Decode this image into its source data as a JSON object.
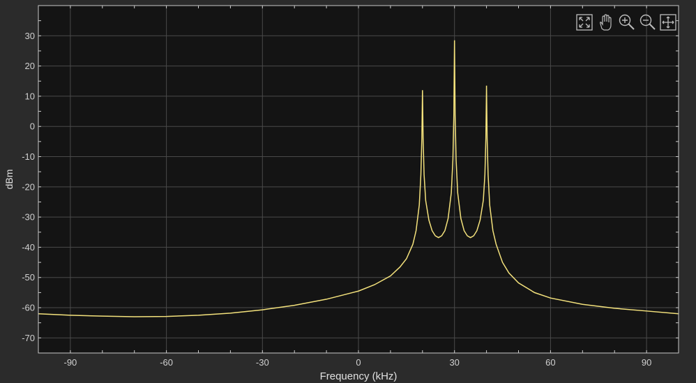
{
  "chart_data": {
    "type": "line",
    "xlabel": "Frequency (kHz)",
    "ylabel": "dBm",
    "xlim": [
      -100,
      100
    ],
    "ylim": [
      -75,
      40
    ],
    "xticks": [
      -90,
      -60,
      -30,
      0,
      30,
      60,
      90
    ],
    "yticks": [
      -70,
      -60,
      -50,
      -40,
      -30,
      -20,
      -10,
      0,
      10,
      20,
      30
    ],
    "grid": true,
    "legend": "none",
    "colors": {
      "background": "#141414",
      "frame": "#2b2b2b",
      "grid": "#4a4a4a",
      "axis": "#d0d0d0",
      "line": "#f4e27c"
    },
    "series": [
      {
        "x": [
          -100,
          -90,
          -80,
          -70,
          -60,
          -50,
          -40,
          -30,
          -20,
          -10,
          0,
          5,
          10,
          13,
          15,
          17,
          18,
          19,
          19.5,
          19.8,
          20,
          20.2,
          20.5,
          21,
          22,
          23,
          24,
          25,
          26,
          27,
          28,
          29,
          29.5,
          29.8,
          30,
          30.2,
          30.5,
          31,
          32,
          33,
          34,
          35,
          36,
          37,
          38,
          39,
          39.5,
          39.8,
          40,
          40.2,
          40.5,
          41,
          42,
          43,
          45,
          47,
          50,
          55,
          60,
          70,
          80,
          90,
          100
        ],
        "y": [
          -62,
          -62.5,
          -62.8,
          -63,
          -62.9,
          -62.5,
          -61.8,
          -60.7,
          -59.2,
          -57.2,
          -54.5,
          -52.4,
          -49.5,
          -46.5,
          -43.8,
          -39,
          -34.5,
          -26,
          -16,
          -4,
          12,
          -4,
          -16,
          -24.5,
          -31,
          -34.5,
          -36.2,
          -36.8,
          -36.2,
          -34.5,
          -30.5,
          -22,
          -11,
          4,
          28.5,
          4,
          -11,
          -22,
          -30.5,
          -34.5,
          -36.2,
          -36.8,
          -36.2,
          -34.5,
          -31,
          -24.5,
          -16,
          -4,
          13.5,
          -4,
          -16,
          -26,
          -34.5,
          -39,
          -45,
          -48.5,
          -51.8,
          -55,
          -56.8,
          -58.9,
          -60.2,
          -61.1,
          -62
        ]
      }
    ]
  },
  "toolbar": [
    {
      "name": "autoscale",
      "icon": "autoscale-icon"
    },
    {
      "name": "pan",
      "icon": "pan-hand-icon"
    },
    {
      "name": "zoom-in",
      "icon": "zoom-in-icon"
    },
    {
      "name": "zoom-out",
      "icon": "zoom-out-icon"
    },
    {
      "name": "restore-view",
      "icon": "restore-view-icon"
    }
  ]
}
